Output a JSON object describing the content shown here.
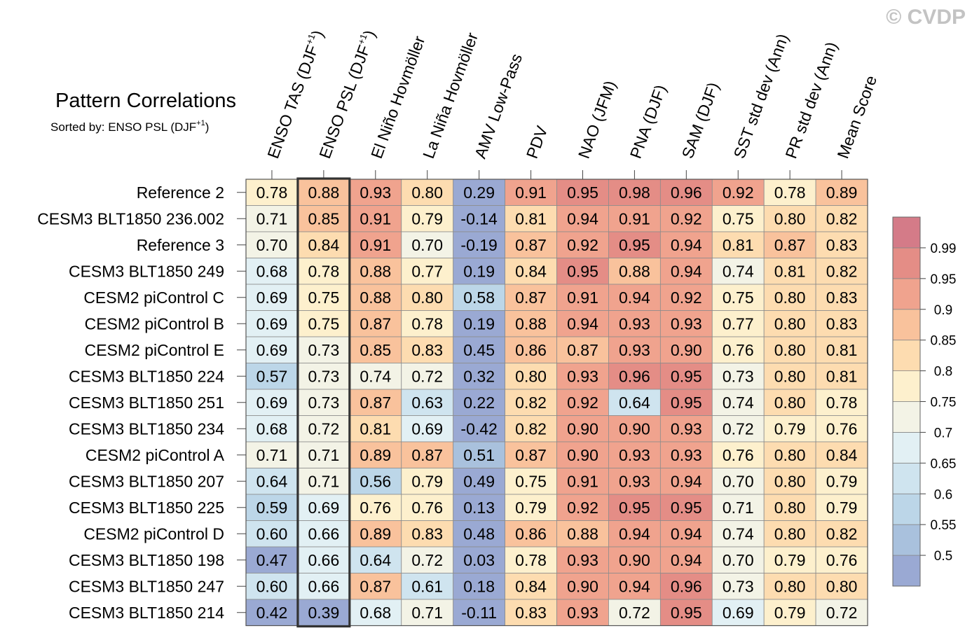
{
  "watermark": "© CVDP",
  "chart_data": {
    "type": "heatmap",
    "title": "Pattern Correlations",
    "subtitle_prefix": "Sorted by: ENSO PSL (DJF",
    "subtitle_sup": "+1",
    "subtitle_suffix": ")",
    "sorted_column": 1,
    "columns": [
      {
        "label": "ENSO TAS (DJF",
        "sup": "+1",
        "end": ")"
      },
      {
        "label": "ENSO PSL (DJF",
        "sup": "+1",
        "end": ")"
      },
      {
        "label": "El Niño Hovmöller"
      },
      {
        "label": "La Niña Hovmöller"
      },
      {
        "label": "AMV Low-Pass"
      },
      {
        "label": "PDV"
      },
      {
        "label": "NAO (JFM)"
      },
      {
        "label": "PNA (DJF)"
      },
      {
        "label": "SAM (DJF)"
      },
      {
        "label": "SST std dev (Ann)"
      },
      {
        "label": "PR std dev (Ann)"
      },
      {
        "label": "Mean Score"
      }
    ],
    "rows": [
      "Reference 2",
      "CESM3 BLT1850 236.002",
      "Reference 3",
      "CESM3 BLT1850 249",
      "CESM2 piControl C",
      "CESM2 piControl B",
      "CESM2 piControl E",
      "CESM3 BLT1850 224",
      "CESM3 BLT1850 251",
      "CESM3 BLT1850 234",
      "CESM2 piControl A",
      "CESM3 BLT1850 207",
      "CESM3 BLT1850 225",
      "CESM2 piControl D",
      "CESM3 BLT1850 198",
      "CESM3 BLT1850 247",
      "CESM3 BLT1850 214"
    ],
    "values": [
      [
        "0.78",
        "0.88",
        "0.93",
        "0.80",
        "0.29",
        "0.91",
        "0.95",
        "0.98",
        "0.96",
        "0.92",
        "0.78",
        "0.89"
      ],
      [
        "0.71",
        "0.85",
        "0.91",
        "0.79",
        "-0.14",
        "0.81",
        "0.94",
        "0.91",
        "0.92",
        "0.75",
        "0.80",
        "0.82"
      ],
      [
        "0.70",
        "0.84",
        "0.91",
        "0.70",
        "-0.19",
        "0.87",
        "0.92",
        "0.95",
        "0.94",
        "0.81",
        "0.87",
        "0.83"
      ],
      [
        "0.68",
        "0.78",
        "0.88",
        "0.77",
        "0.19",
        "0.84",
        "0.95",
        "0.88",
        "0.94",
        "0.74",
        "0.81",
        "0.82"
      ],
      [
        "0.69",
        "0.75",
        "0.88",
        "0.80",
        "0.58",
        "0.87",
        "0.91",
        "0.94",
        "0.92",
        "0.75",
        "0.80",
        "0.83"
      ],
      [
        "0.69",
        "0.75",
        "0.87",
        "0.78",
        "0.19",
        "0.88",
        "0.94",
        "0.93",
        "0.93",
        "0.77",
        "0.80",
        "0.83"
      ],
      [
        "0.69",
        "0.73",
        "0.85",
        "0.83",
        "0.45",
        "0.86",
        "0.87",
        "0.93",
        "0.90",
        "0.76",
        "0.80",
        "0.81"
      ],
      [
        "0.57",
        "0.73",
        "0.74",
        "0.72",
        "0.32",
        "0.80",
        "0.93",
        "0.96",
        "0.95",
        "0.73",
        "0.80",
        "0.81"
      ],
      [
        "0.69",
        "0.73",
        "0.87",
        "0.63",
        "0.22",
        "0.82",
        "0.92",
        "0.64",
        "0.95",
        "0.74",
        "0.80",
        "0.78"
      ],
      [
        "0.68",
        "0.72",
        "0.81",
        "0.69",
        "-0.42",
        "0.82",
        "0.90",
        "0.90",
        "0.93",
        "0.72",
        "0.79",
        "0.76"
      ],
      [
        "0.71",
        "0.71",
        "0.89",
        "0.87",
        "0.51",
        "0.87",
        "0.90",
        "0.93",
        "0.93",
        "0.76",
        "0.80",
        "0.84"
      ],
      [
        "0.64",
        "0.71",
        "0.56",
        "0.79",
        "0.49",
        "0.75",
        "0.91",
        "0.93",
        "0.94",
        "0.70",
        "0.80",
        "0.79"
      ],
      [
        "0.59",
        "0.69",
        "0.76",
        "0.76",
        "0.13",
        "0.79",
        "0.92",
        "0.95",
        "0.95",
        "0.71",
        "0.80",
        "0.79"
      ],
      [
        "0.60",
        "0.66",
        "0.89",
        "0.83",
        "0.48",
        "0.86",
        "0.88",
        "0.94",
        "0.94",
        "0.74",
        "0.80",
        "0.82"
      ],
      [
        "0.47",
        "0.66",
        "0.64",
        "0.72",
        "0.03",
        "0.78",
        "0.93",
        "0.90",
        "0.94",
        "0.70",
        "0.79",
        "0.76"
      ],
      [
        "0.60",
        "0.66",
        "0.87",
        "0.61",
        "0.18",
        "0.84",
        "0.90",
        "0.94",
        "0.96",
        "0.73",
        "0.80",
        "0.80"
      ],
      [
        "0.42",
        "0.39",
        "0.68",
        "0.71",
        "-0.11",
        "0.83",
        "0.93",
        "0.72",
        "0.95",
        "0.69",
        "0.79",
        "0.72"
      ]
    ],
    "colorbar": {
      "levels": [
        0.5,
        0.55,
        0.6,
        0.65,
        0.7,
        0.75,
        0.8,
        0.85,
        0.9,
        0.95,
        0.99
      ],
      "tick_labels": [
        "0.5",
        "0.55",
        "0.6",
        "0.65",
        "0.7",
        "0.75",
        "0.8",
        "0.85",
        "0.9",
        "0.95",
        "0.99"
      ],
      "colors": [
        "#9aa9d3",
        "#a9c1dd",
        "#bcd6e8",
        "#cfe4ef",
        "#e2f0f4",
        "#f3f3e6",
        "#fdf0cd",
        "#fddcb0",
        "#f9c29c",
        "#f0a38e",
        "#e48d86",
        "#d47b88"
      ]
    }
  }
}
